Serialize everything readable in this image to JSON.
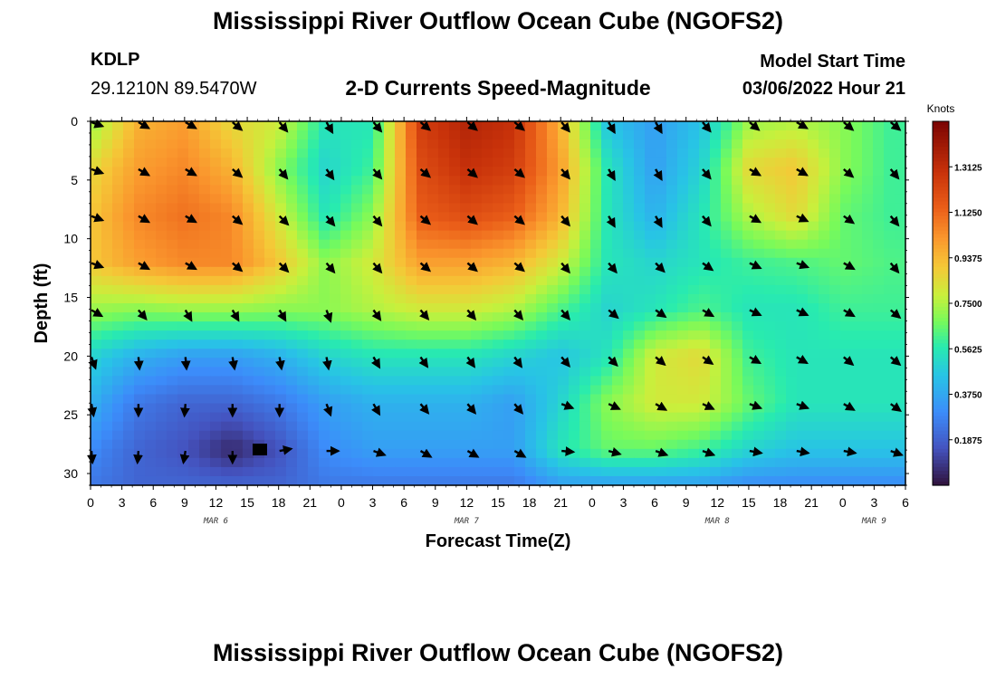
{
  "header": {
    "title": "Mississippi River Outflow Ocean Cube (NGOFS2)",
    "station": "KDLP",
    "coords": "29.1210N  89.5470W",
    "subtitle": "2-D Currents Speed-Magnitude",
    "model_start_label": "Model Start Time",
    "model_start_value": "03/06/2022 Hour 21"
  },
  "footer_title": "Mississippi River Outflow Ocean Cube (NGOFS2)",
  "chart_data": {
    "type": "heatmap",
    "xlabel": "Forecast Time(Z)",
    "ylabel": "Depth (ft)",
    "x_ticks": [
      "0",
      "3",
      "6",
      "9",
      "12",
      "15",
      "18",
      "21",
      "0",
      "3",
      "6",
      "9",
      "12",
      "15",
      "18",
      "21",
      "0",
      "3",
      "6",
      "9",
      "12",
      "15",
      "18",
      "21",
      "0",
      "3",
      "6"
    ],
    "day_labels": [
      {
        "label": "MAR 6",
        "hour": 12
      },
      {
        "label": "MAR 7",
        "hour": 36
      },
      {
        "label": "MAR 8",
        "hour": 60
      },
      {
        "label": "MAR 9",
        "hour": 75
      }
    ],
    "x_range_hours": [
      0,
      78
    ],
    "y_ticks": [
      0,
      5,
      10,
      15,
      20,
      25,
      30
    ],
    "y_range_ft": [
      0,
      31
    ],
    "colorbar": {
      "unit": "Knots",
      "range": [
        0,
        1.5
      ],
      "ticks": [
        "1.3125",
        "1.1250",
        "0.9375",
        "0.7500",
        "0.5625",
        "0.3750",
        "0.1875"
      ]
    },
    "speed_grid": {
      "hours": [
        0,
        4.5,
        9,
        13.5,
        18,
        22.5,
        27,
        31.5,
        36,
        40.5,
        45,
        49.5,
        54,
        58.5,
        63,
        67.5,
        72,
        76.5
      ],
      "depths_ft": [
        0,
        4,
        8,
        12,
        16,
        20,
        24,
        28,
        31
      ],
      "values": [
        [
          0.7,
          0.95,
          1.0,
          0.85,
          0.8,
          0.55,
          0.55,
          1.25,
          1.35,
          1.3,
          0.95,
          0.45,
          0.35,
          0.45,
          0.72,
          0.75,
          0.7,
          0.6
        ],
        [
          0.85,
          1.0,
          1.05,
          0.95,
          0.7,
          0.5,
          0.6,
          1.2,
          1.3,
          1.25,
          1.0,
          0.55,
          0.35,
          0.5,
          0.85,
          0.9,
          0.7,
          0.6
        ],
        [
          0.9,
          1.05,
          1.1,
          1.05,
          0.8,
          0.55,
          0.7,
          1.15,
          1.2,
          1.15,
          0.95,
          0.55,
          0.4,
          0.55,
          0.75,
          0.85,
          0.65,
          0.6
        ],
        [
          0.9,
          1.0,
          1.05,
          1.05,
          0.9,
          0.7,
          0.8,
          1.0,
          1.0,
          0.95,
          0.8,
          0.55,
          0.5,
          0.55,
          0.6,
          0.62,
          0.65,
          0.62
        ],
        [
          0.72,
          0.7,
          0.72,
          0.72,
          0.7,
          0.7,
          0.75,
          0.8,
          0.8,
          0.75,
          0.62,
          0.5,
          0.55,
          0.62,
          0.55,
          0.55,
          0.6,
          0.6
        ],
        [
          0.5,
          0.4,
          0.35,
          0.35,
          0.4,
          0.5,
          0.55,
          0.55,
          0.55,
          0.5,
          0.45,
          0.55,
          0.8,
          0.85,
          0.6,
          0.55,
          0.55,
          0.55
        ],
        [
          0.4,
          0.25,
          0.2,
          0.2,
          0.25,
          0.35,
          0.4,
          0.4,
          0.4,
          0.35,
          0.5,
          0.7,
          0.8,
          0.8,
          0.65,
          0.55,
          0.55,
          0.55
        ],
        [
          0.3,
          0.2,
          0.15,
          0.05,
          0.15,
          0.3,
          0.35,
          0.35,
          0.35,
          0.35,
          0.55,
          0.65,
          0.65,
          0.6,
          0.5,
          0.45,
          0.45,
          0.45
        ],
        [
          0.25,
          0.2,
          0.2,
          0.2,
          0.2,
          0.25,
          0.25,
          0.25,
          0.25,
          0.25,
          0.35,
          0.35,
          0.35,
          0.35,
          0.3,
          0.3,
          0.3,
          0.3
        ]
      ]
    },
    "current_vectors": {
      "hours": [
        0,
        4.5,
        9,
        13.5,
        18,
        22.5,
        27,
        31.5,
        36,
        40.5,
        45,
        49.5,
        54,
        58.5,
        63,
        67.5,
        72,
        76.5
      ],
      "depths_ft": [
        0,
        4,
        8,
        12,
        16,
        20,
        24,
        28
      ],
      "direction_deg": [
        [
          110,
          120,
          120,
          130,
          140,
          150,
          140,
          130,
          130,
          130,
          140,
          150,
          150,
          140,
          130,
          120,
          130,
          130
        ],
        [
          110,
          120,
          120,
          130,
          140,
          145,
          140,
          130,
          130,
          130,
          140,
          150,
          150,
          140,
          120,
          120,
          130,
          140
        ],
        [
          110,
          120,
          120,
          130,
          135,
          140,
          140,
          130,
          130,
          130,
          140,
          150,
          150,
          140,
          120,
          115,
          125,
          140
        ],
        [
          110,
          120,
          120,
          130,
          135,
          140,
          140,
          130,
          130,
          130,
          140,
          140,
          135,
          125,
          115,
          110,
          120,
          140
        ],
        [
          120,
          140,
          150,
          150,
          150,
          160,
          145,
          140,
          140,
          140,
          140,
          130,
          125,
          120,
          115,
          115,
          120,
          130
        ],
        [
          160,
          175,
          175,
          170,
          170,
          170,
          150,
          145,
          145,
          145,
          140,
          135,
          130,
          125,
          120,
          120,
          130,
          130
        ],
        [
          170,
          180,
          185,
          180,
          180,
          160,
          150,
          140,
          140,
          140,
          110,
          115,
          120,
          115,
          110,
          110,
          120,
          125
        ],
        [
          175,
          185,
          190,
          180,
          80,
          90,
          110,
          120,
          120,
          120,
          95,
          105,
          110,
          110,
          100,
          100,
          100,
          110
        ]
      ]
    }
  }
}
